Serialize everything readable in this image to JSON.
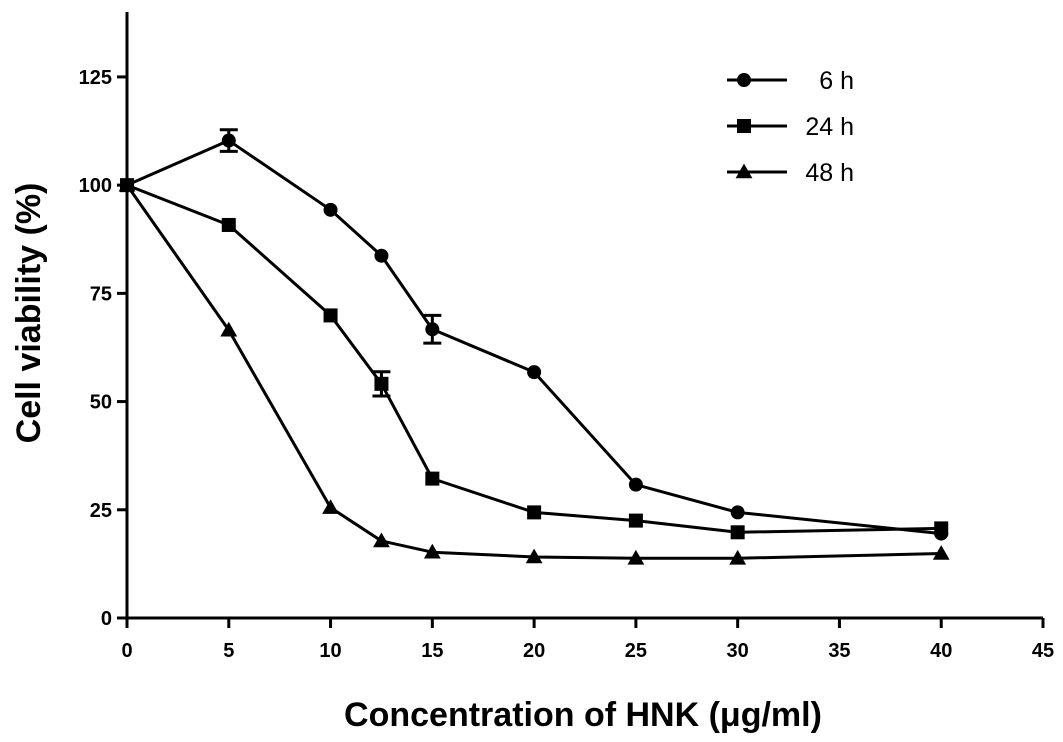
{
  "chart_data": {
    "type": "line",
    "xlabel": "Concentration of HNK (μg/ml)",
    "ylabel": "Cell viability (%)",
    "xlim": [
      0,
      45
    ],
    "ylim": [
      0,
      140
    ],
    "x_ticks": [
      "0",
      "5",
      "10",
      "15",
      "20",
      "25",
      "30",
      "35",
      "40",
      "45"
    ],
    "y_ticks": [
      "0",
      "25",
      "50",
      "75",
      "100",
      "125"
    ],
    "grid": false,
    "legend_position": "top-right",
    "series": [
      {
        "name": "6 h",
        "marker": "circle",
        "x": [
          0,
          5,
          10,
          12.5,
          15,
          20,
          25,
          30,
          40
        ],
        "y": [
          100,
          110.3,
          94.3,
          83.7,
          66.7,
          56.8,
          30.8,
          24.4,
          19.5
        ],
        "err": [
          0,
          2.5,
          0,
          0,
          3.2,
          0,
          0,
          0,
          0
        ]
      },
      {
        "name": "24 h",
        "marker": "square",
        "x": [
          0,
          5,
          10,
          12.5,
          15,
          20,
          25,
          30,
          40
        ],
        "y": [
          100,
          90.8,
          69.9,
          54.1,
          32.2,
          24.4,
          22.5,
          19.8,
          20.7
        ],
        "err": [
          0,
          0,
          0,
          2.8,
          0,
          0,
          0,
          0,
          0
        ]
      },
      {
        "name": "48 h",
        "marker": "triangle",
        "x": [
          0,
          5,
          10,
          12.5,
          15,
          20,
          25,
          30,
          40
        ],
        "y": [
          100,
          66.5,
          25.5,
          17.8,
          15.2,
          14.1,
          13.8,
          13.8,
          14.9
        ],
        "err": [
          0,
          0,
          0,
          0,
          0,
          0,
          0,
          0,
          0
        ]
      }
    ]
  }
}
